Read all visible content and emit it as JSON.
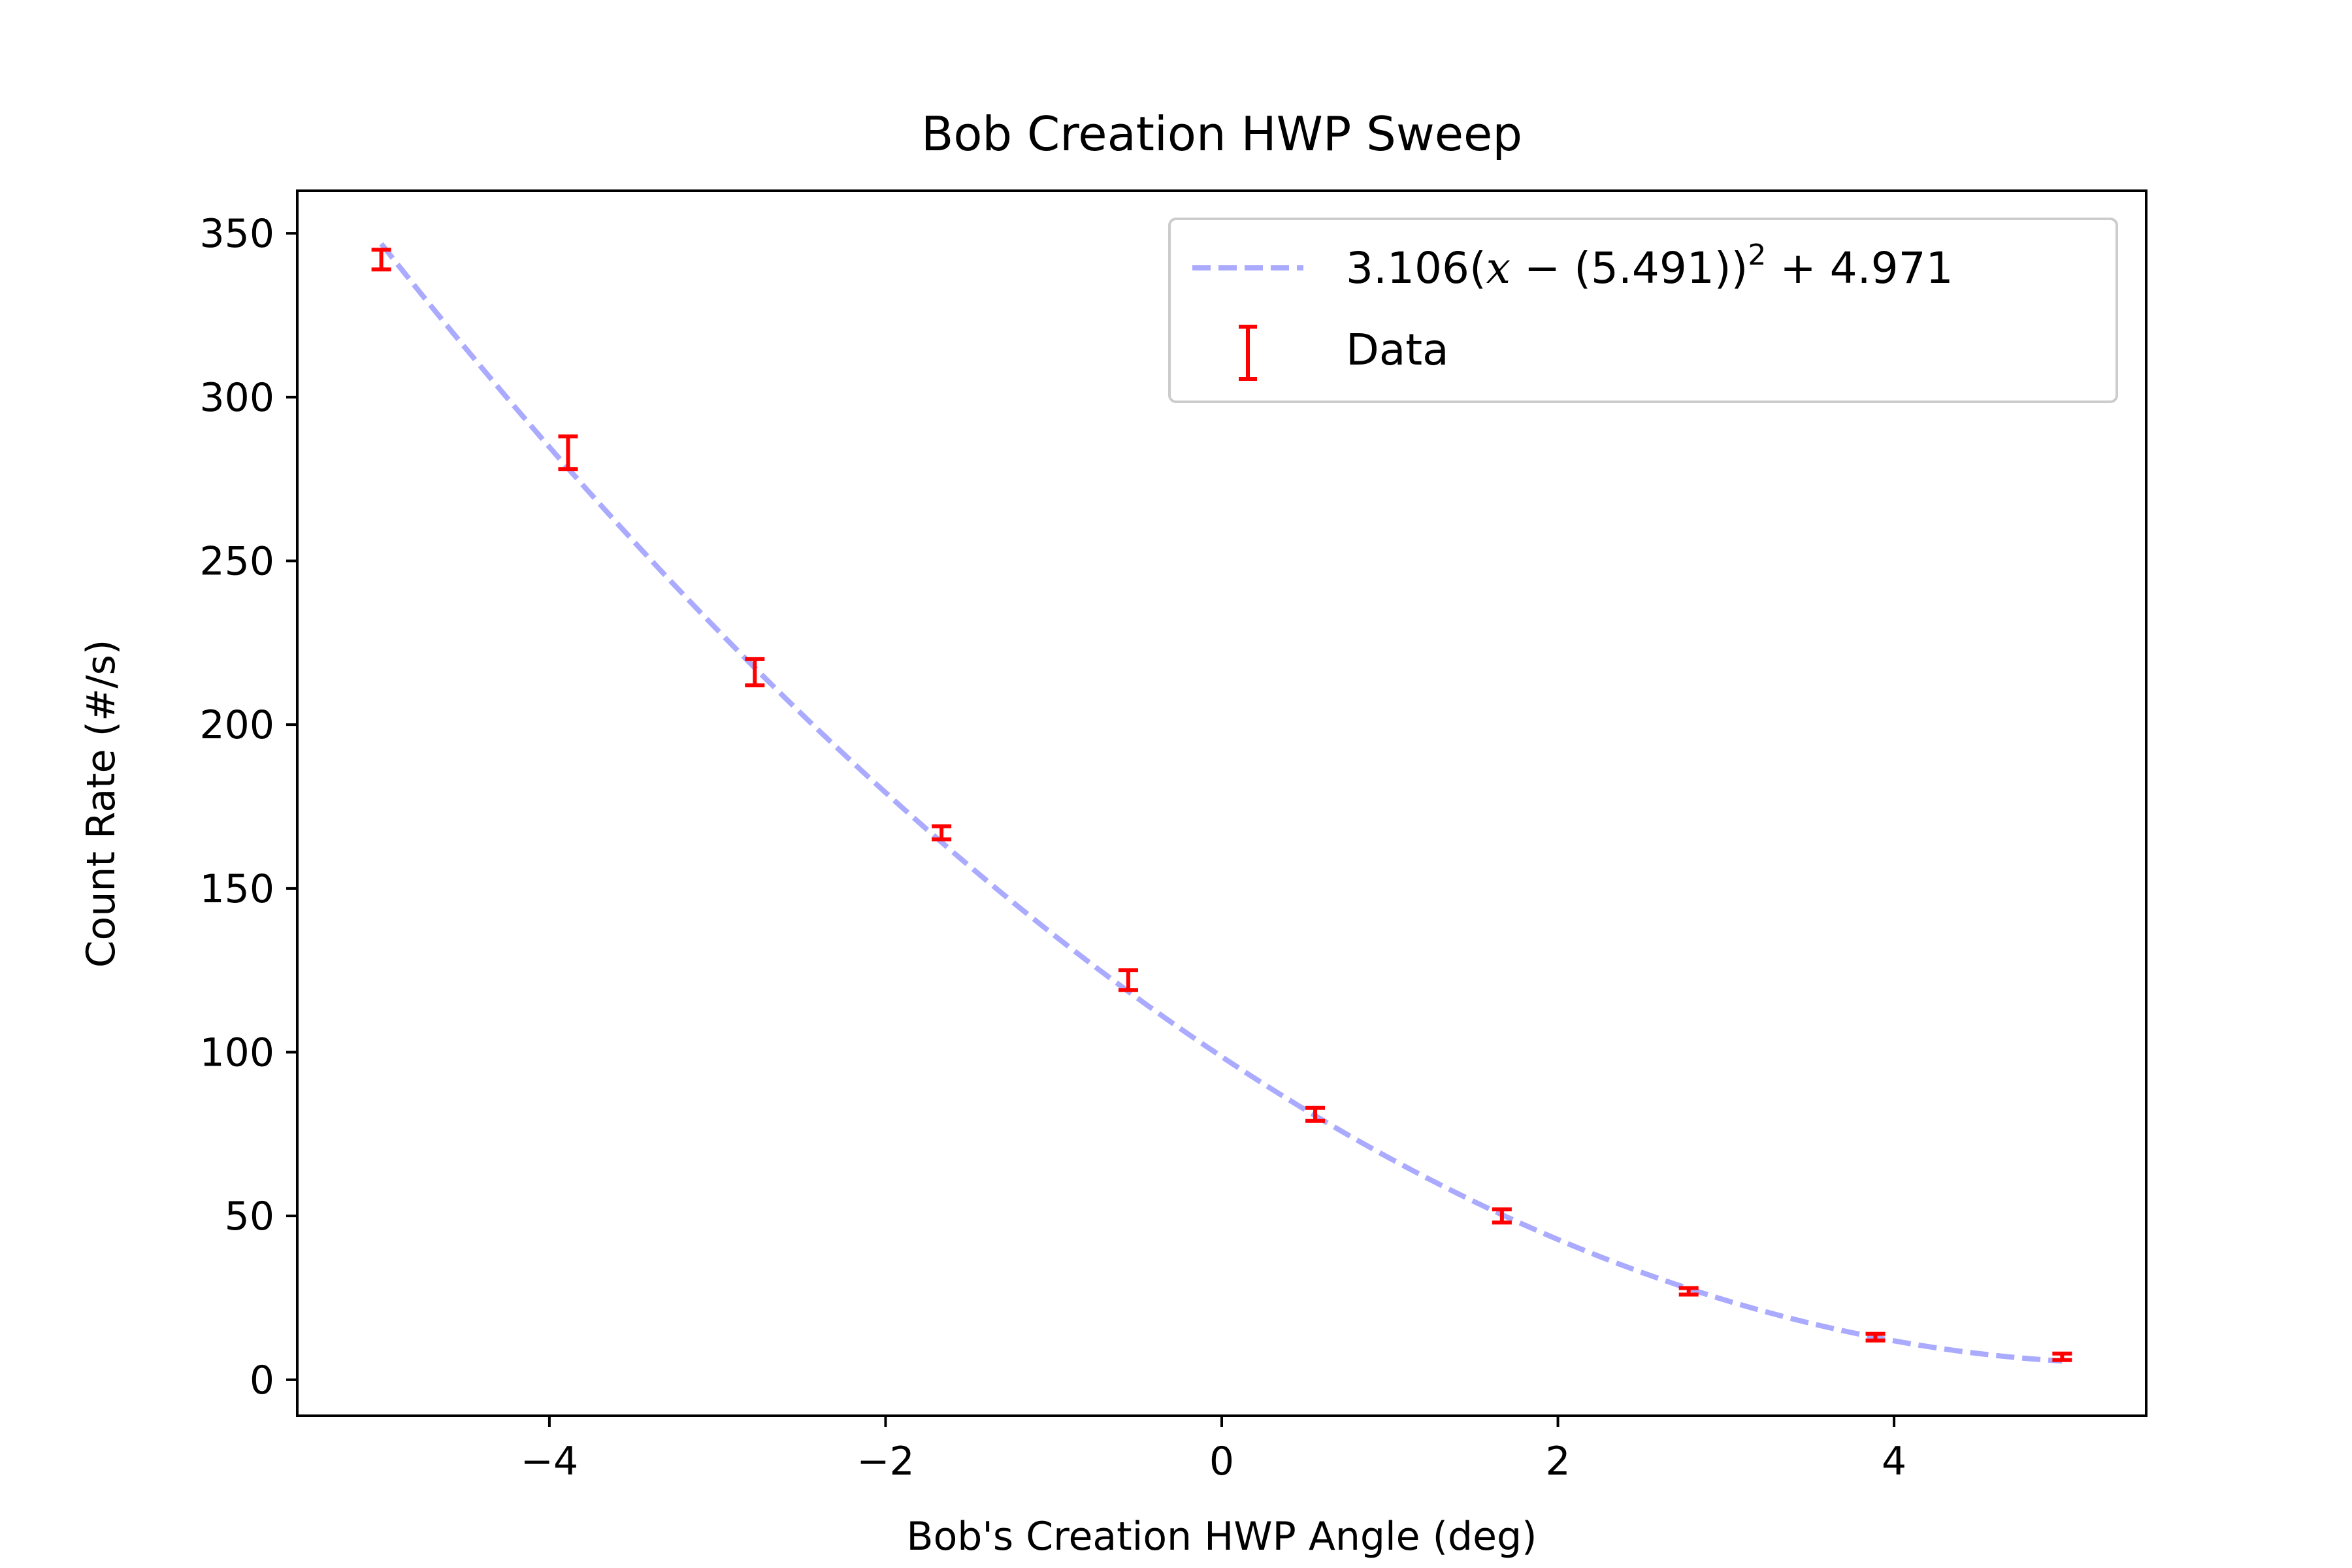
{
  "chart_data": {
    "type": "scatter",
    "title": "Bob Creation HWP Sweep",
    "xlabel": "Bob's Creation HWP Angle (deg)",
    "ylabel": "Count Rate (#/s)",
    "xlim": [
      -5.5,
      5.5
    ],
    "ylim": [
      -11,
      363
    ],
    "xticks": [
      -4,
      -2,
      0,
      2,
      4
    ],
    "xtick_labels": [
      "−4",
      "−2",
      "0",
      "2",
      "4"
    ],
    "yticks": [
      0,
      50,
      100,
      150,
      200,
      250,
      300,
      350
    ],
    "ytick_labels": [
      "0",
      "50",
      "100",
      "150",
      "200",
      "250",
      "300",
      "350"
    ],
    "grid": false,
    "legend_position": "top-right",
    "series": [
      {
        "name": "3.106(x − (5.491))² + 4.971",
        "kind": "fit-line",
        "style": "dashed",
        "color": "#aaaaff",
        "equation": {
          "a": 3.106,
          "h": 5.491,
          "k": 4.971
        },
        "x_range": [
          -5.0,
          5.0
        ]
      },
      {
        "name": "Data",
        "kind": "errorbar",
        "color": "#ff0000",
        "x": [
          -5.0,
          -3.889,
          -2.778,
          -1.667,
          -0.556,
          0.556,
          1.667,
          2.778,
          3.889,
          5.0
        ],
        "y": [
          342,
          283,
          216,
          167,
          122,
          81,
          50,
          27,
          13,
          7
        ],
        "yerr": [
          3,
          5,
          4,
          2,
          3,
          2,
          2,
          1,
          1,
          1
        ]
      }
    ],
    "legend": {
      "fit_label_parts": {
        "lead": "3.106(",
        "var": "x",
        "mid": " − (5.491))",
        "exp": "2",
        "tail": " + 4.971"
      },
      "data_label": "Data"
    }
  }
}
